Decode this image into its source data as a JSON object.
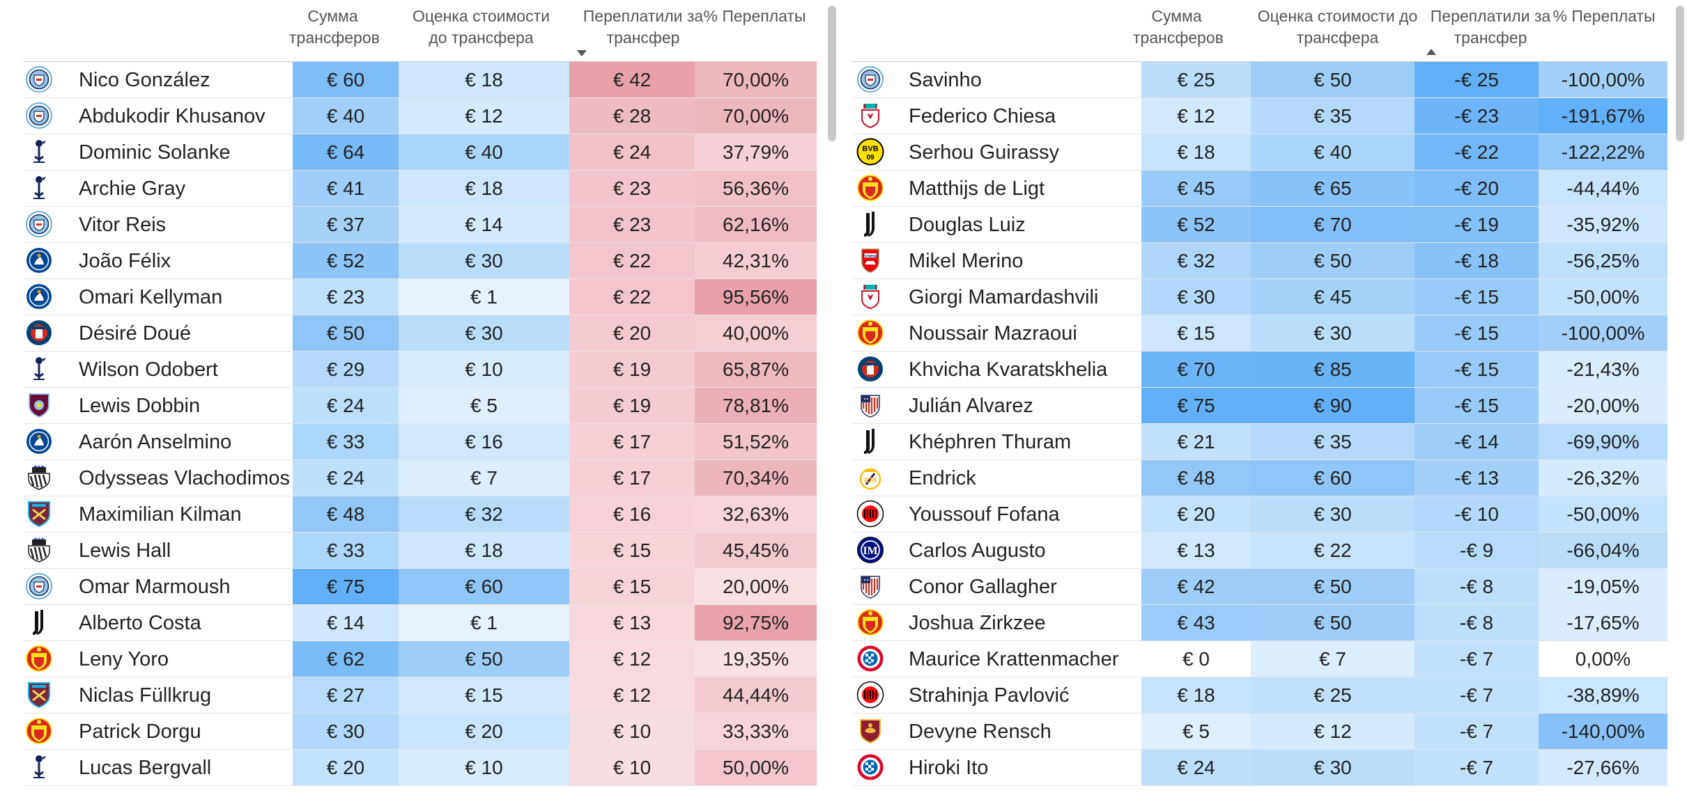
{
  "columns": {
    "sum": "Сумма трансферов",
    "estimate": "Оценка стоимости до трансфера",
    "overpaid": "Переплатили за трансфер",
    "pct": "% Переплаты"
  },
  "scale": {
    "sum_max": 75,
    "estimate_max": 90,
    "overpaid_max": 42,
    "pct_max": 95.56,
    "neg_overpaid_max": 25,
    "neg_pct_max": 191.67,
    "blue": "#62b0f7",
    "red": "#e9a0aa"
  },
  "left_table": {
    "sort": "descending",
    "rows": [
      {
        "club": "man-city",
        "name": "Nico González",
        "sum": "€ 60",
        "sum_v": 60,
        "est": "€ 18",
        "est_v": 18,
        "over": "€ 42",
        "over_v": 42,
        "pct": "70,00%",
        "pct_v": 70
      },
      {
        "club": "man-city",
        "name": "Abdukodir Khusanov",
        "sum": "€ 40",
        "sum_v": 40,
        "est": "€ 12",
        "est_v": 12,
        "over": "€ 28",
        "over_v": 28,
        "pct": "70,00%",
        "pct_v": 70
      },
      {
        "club": "tottenham",
        "name": "Dominic Solanke",
        "sum": "€ 64",
        "sum_v": 64,
        "est": "€ 40",
        "est_v": 40,
        "over": "€ 24",
        "over_v": 24,
        "pct": "37,79%",
        "pct_v": 37.79
      },
      {
        "club": "tottenham",
        "name": "Archie Gray",
        "sum": "€ 41",
        "sum_v": 41,
        "est": "€ 18",
        "est_v": 18,
        "over": "€ 23",
        "over_v": 23,
        "pct": "56,36%",
        "pct_v": 56.36
      },
      {
        "club": "man-city",
        "name": "Vitor Reis",
        "sum": "€ 37",
        "sum_v": 37,
        "est": "€ 14",
        "est_v": 14,
        "over": "€ 23",
        "over_v": 23,
        "pct": "62,16%",
        "pct_v": 62.16
      },
      {
        "club": "chelsea",
        "name": "João Félix",
        "sum": "€ 52",
        "sum_v": 52,
        "est": "€ 30",
        "est_v": 30,
        "over": "€ 22",
        "over_v": 22,
        "pct": "42,31%",
        "pct_v": 42.31
      },
      {
        "club": "chelsea",
        "name": "Omari Kellyman",
        "sum": "€ 23",
        "sum_v": 23,
        "est": "€ 1",
        "est_v": 1,
        "over": "€ 22",
        "over_v": 22,
        "pct": "95,56%",
        "pct_v": 95.56
      },
      {
        "club": "psg",
        "name": "Désiré Doué",
        "sum": "€ 50",
        "sum_v": 50,
        "est": "€ 30",
        "est_v": 30,
        "over": "€ 20",
        "over_v": 20,
        "pct": "40,00%",
        "pct_v": 40
      },
      {
        "club": "tottenham",
        "name": "Wilson Odobert",
        "sum": "€ 29",
        "sum_v": 29,
        "est": "€ 10",
        "est_v": 10,
        "over": "€ 19",
        "over_v": 19,
        "pct": "65,87%",
        "pct_v": 65.87
      },
      {
        "club": "aston-villa",
        "name": "Lewis Dobbin",
        "sum": "€ 24",
        "sum_v": 24,
        "est": "€ 5",
        "est_v": 5,
        "over": "€ 19",
        "over_v": 19,
        "pct": "78,81%",
        "pct_v": 78.81
      },
      {
        "club": "chelsea",
        "name": "Aarón Anselmino",
        "sum": "€ 33",
        "sum_v": 33,
        "est": "€ 16",
        "est_v": 16,
        "over": "€ 17",
        "over_v": 17,
        "pct": "51,52%",
        "pct_v": 51.52
      },
      {
        "club": "newcastle",
        "name": "Odysseas Vlachodimos",
        "sum": "€ 24",
        "sum_v": 24,
        "est": "€ 7",
        "est_v": 7,
        "over": "€ 17",
        "over_v": 17,
        "pct": "70,34%",
        "pct_v": 70.34
      },
      {
        "club": "west-ham",
        "name": "Maximilian Kilman",
        "sum": "€ 48",
        "sum_v": 48,
        "est": "€ 32",
        "est_v": 32,
        "over": "€ 16",
        "over_v": 16,
        "pct": "32,63%",
        "pct_v": 32.63
      },
      {
        "club": "newcastle",
        "name": "Lewis Hall",
        "sum": "€ 33",
        "sum_v": 33,
        "est": "€ 18",
        "est_v": 18,
        "over": "€ 15",
        "over_v": 15,
        "pct": "45,45%",
        "pct_v": 45.45
      },
      {
        "club": "man-city",
        "name": "Omar Marmoush",
        "sum": "€ 75",
        "sum_v": 75,
        "est": "€ 60",
        "est_v": 60,
        "over": "€ 15",
        "over_v": 15,
        "pct": "20,00%",
        "pct_v": 20
      },
      {
        "club": "juventus",
        "name": "Alberto Costa",
        "sum": "€ 14",
        "sum_v": 14,
        "est": "€ 1",
        "est_v": 1,
        "over": "€ 13",
        "over_v": 13,
        "pct": "92,75%",
        "pct_v": 92.75
      },
      {
        "club": "man-united",
        "name": "Leny Yoro",
        "sum": "€ 62",
        "sum_v": 62,
        "est": "€ 50",
        "est_v": 50,
        "over": "€ 12",
        "over_v": 12,
        "pct": "19,35%",
        "pct_v": 19.35
      },
      {
        "club": "west-ham",
        "name": "Niclas Füllkrug",
        "sum": "€ 27",
        "sum_v": 27,
        "est": "€ 15",
        "est_v": 15,
        "over": "€ 12",
        "over_v": 12,
        "pct": "44,44%",
        "pct_v": 44.44
      },
      {
        "club": "man-united",
        "name": "Patrick Dorgu",
        "sum": "€ 30",
        "sum_v": 30,
        "est": "€ 20",
        "est_v": 20,
        "over": "€ 10",
        "over_v": 10,
        "pct": "33,33%",
        "pct_v": 33.33
      },
      {
        "club": "tottenham",
        "name": "Lucas Bergvall",
        "sum": "€ 20",
        "sum_v": 20,
        "est": "€ 10",
        "est_v": 10,
        "over": "€ 10",
        "over_v": 10,
        "pct": "50,00%",
        "pct_v": 50
      }
    ]
  },
  "right_table": {
    "sort": "ascending",
    "rows": [
      {
        "club": "man-city",
        "name": "Savinho",
        "sum": "€ 25",
        "sum_v": 25,
        "est": "€ 50",
        "est_v": 50,
        "over": "-€ 25",
        "over_v": -25,
        "pct": "-100,00%",
        "pct_v": -100
      },
      {
        "club": "liverpool",
        "name": "Federico Chiesa",
        "sum": "€ 12",
        "sum_v": 12,
        "est": "€ 35",
        "est_v": 35,
        "over": "-€ 23",
        "over_v": -23,
        "pct": "-191,67%",
        "pct_v": -191.67
      },
      {
        "club": "dortmund",
        "name": "Serhou Guirassy",
        "sum": "€ 18",
        "sum_v": 18,
        "est": "€ 40",
        "est_v": 40,
        "over": "-€ 22",
        "over_v": -22,
        "pct": "-122,22%",
        "pct_v": -122.22
      },
      {
        "club": "man-united",
        "name": "Matthijs de Ligt",
        "sum": "€ 45",
        "sum_v": 45,
        "est": "€ 65",
        "est_v": 65,
        "over": "-€ 20",
        "over_v": -20,
        "pct": "-44,44%",
        "pct_v": -44.44
      },
      {
        "club": "juventus",
        "name": "Douglas Luiz",
        "sum": "€ 52",
        "sum_v": 52,
        "est": "€ 70",
        "est_v": 70,
        "over": "-€ 19",
        "over_v": -19,
        "pct": "-35,92%",
        "pct_v": -35.92
      },
      {
        "club": "arsenal",
        "name": "Mikel Merino",
        "sum": "€ 32",
        "sum_v": 32,
        "est": "€ 50",
        "est_v": 50,
        "over": "-€ 18",
        "over_v": -18,
        "pct": "-56,25%",
        "pct_v": -56.25
      },
      {
        "club": "liverpool",
        "name": "Giorgi Mamardashvili",
        "sum": "€ 30",
        "sum_v": 30,
        "est": "€ 45",
        "est_v": 45,
        "over": "-€ 15",
        "over_v": -15,
        "pct": "-50,00%",
        "pct_v": -50
      },
      {
        "club": "man-united",
        "name": "Noussair Mazraoui",
        "sum": "€ 15",
        "sum_v": 15,
        "est": "€ 30",
        "est_v": 30,
        "over": "-€ 15",
        "over_v": -15,
        "pct": "-100,00%",
        "pct_v": -100
      },
      {
        "club": "psg",
        "name": "Khvicha Kvaratskhelia",
        "sum": "€ 70",
        "sum_v": 70,
        "est": "€ 85",
        "est_v": 85,
        "over": "-€ 15",
        "over_v": -15,
        "pct": "-21,43%",
        "pct_v": -21.43
      },
      {
        "club": "atletico",
        "name": "Julián Alvarez",
        "sum": "€ 75",
        "sum_v": 75,
        "est": "€ 90",
        "est_v": 90,
        "over": "-€ 15",
        "over_v": -15,
        "pct": "-20,00%",
        "pct_v": -20
      },
      {
        "club": "juventus",
        "name": "Khéphren Thuram",
        "sum": "€ 21",
        "sum_v": 21,
        "est": "€ 35",
        "est_v": 35,
        "over": "-€ 14",
        "over_v": -14,
        "pct": "-69,90%",
        "pct_v": -69.9
      },
      {
        "club": "real-madrid",
        "name": "Endrick",
        "sum": "€ 48",
        "sum_v": 48,
        "est": "€ 60",
        "est_v": 60,
        "over": "-€ 13",
        "over_v": -13,
        "pct": "-26,32%",
        "pct_v": -26.32
      },
      {
        "club": "ac-milan",
        "name": "Youssouf Fofana",
        "sum": "€ 20",
        "sum_v": 20,
        "est": "€ 30",
        "est_v": 30,
        "over": "-€ 10",
        "over_v": -10,
        "pct": "-50,00%",
        "pct_v": -50
      },
      {
        "club": "inter",
        "name": "Carlos Augusto",
        "sum": "€ 13",
        "sum_v": 13,
        "est": "€ 22",
        "est_v": 22,
        "over": "-€ 9",
        "over_v": -9,
        "pct": "-66,04%",
        "pct_v": -66.04
      },
      {
        "club": "atletico",
        "name": "Conor Gallagher",
        "sum": "€ 42",
        "sum_v": 42,
        "est": "€ 50",
        "est_v": 50,
        "over": "-€ 8",
        "over_v": -8,
        "pct": "-19,05%",
        "pct_v": -19.05
      },
      {
        "club": "man-united",
        "name": "Joshua Zirkzee",
        "sum": "€ 43",
        "sum_v": 43,
        "est": "€ 50",
        "est_v": 50,
        "over": "-€ 8",
        "over_v": -8,
        "pct": "-17,65%",
        "pct_v": -17.65
      },
      {
        "club": "bayern",
        "name": "Maurice Krattenmacher",
        "sum": "€ 0",
        "sum_v": 0,
        "est": "€ 7",
        "est_v": 7,
        "over": "-€ 7",
        "over_v": -7,
        "pct": "0,00%",
        "pct_v": 0
      },
      {
        "club": "ac-milan",
        "name": "Strahinja Pavlović",
        "sum": "€ 18",
        "sum_v": 18,
        "est": "€ 25",
        "est_v": 25,
        "over": "-€ 7",
        "over_v": -7,
        "pct": "-38,89%",
        "pct_v": -38.89
      },
      {
        "club": "roma",
        "name": "Devyne Rensch",
        "sum": "€ 5",
        "sum_v": 5,
        "est": "€ 12",
        "est_v": 12,
        "over": "-€ 7",
        "over_v": -7,
        "pct": "-140,00%",
        "pct_v": -140
      },
      {
        "club": "bayern",
        "name": "Hiroki Ito",
        "sum": "€ 24",
        "sum_v": 24,
        "est": "€ 30",
        "est_v": 30,
        "over": "-€ 7",
        "over_v": -7,
        "pct": "-27,66%",
        "pct_v": -27.66
      }
    ]
  }
}
